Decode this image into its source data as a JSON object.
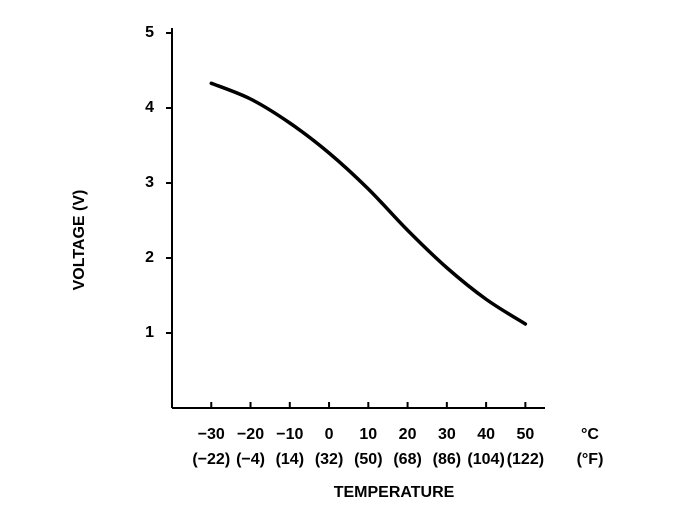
{
  "chart_data": {
    "type": "line",
    "y_label": "VOLTAGE (V)",
    "x_label": "TEMPERATURE",
    "x_unit": "°C",
    "x_unit_secondary": "(°F)",
    "x": [
      -30,
      -20,
      -10,
      0,
      10,
      20,
      30,
      40,
      50
    ],
    "values": [
      4.33,
      4.12,
      3.8,
      3.4,
      2.92,
      2.37,
      1.87,
      1.45,
      1.12
    ],
    "color": "#000000",
    "xlim": [
      -40,
      55
    ],
    "xticks": [
      {
        "value": -30,
        "label": "−30"
      },
      {
        "value": -20,
        "label": "−20"
      },
      {
        "value": -10,
        "label": "−10"
      },
      0,
      10,
      20,
      30,
      40,
      50
    ],
    "xtick_labels_secondary": [
      "(−22)",
      "(−4)",
      "(14)",
      "(32)",
      "(50)",
      "(68)",
      "(86)",
      "(104)",
      "(122)"
    ],
    "ylim": [
      0,
      5
    ],
    "yticks": [
      1,
      2,
      3,
      4,
      5
    ]
  }
}
